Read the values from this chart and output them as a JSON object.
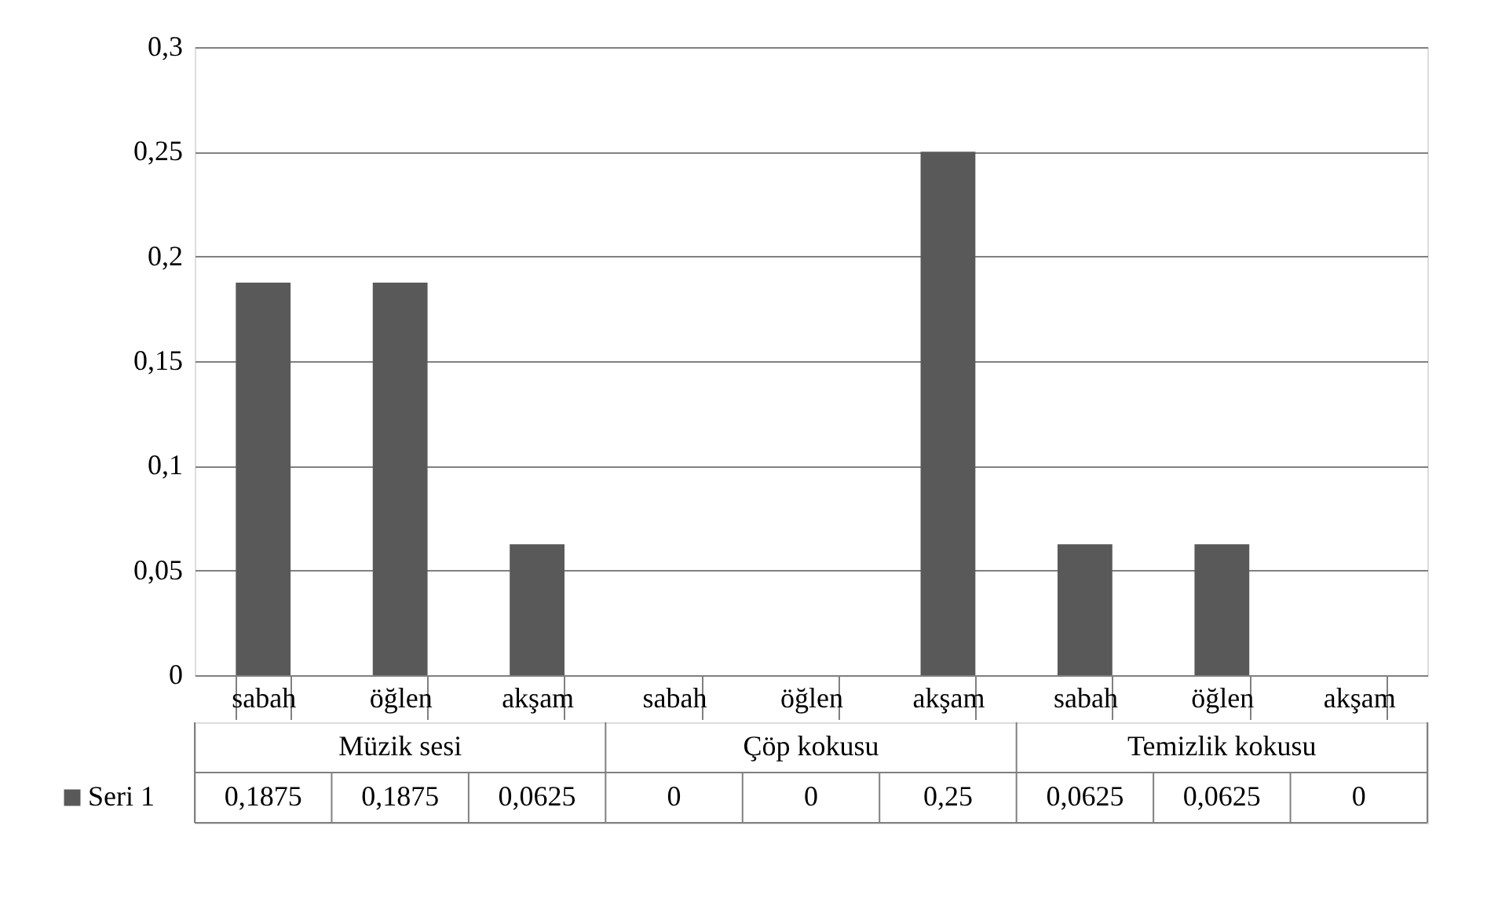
{
  "chart_data": {
    "type": "bar",
    "categories": [
      "sabah",
      "öğlen",
      "akşam",
      "sabah",
      "öğlen",
      "akşam",
      "sabah",
      "öğlen",
      "akşam"
    ],
    "series": [
      {
        "name": "Seri 1",
        "color": "#595959",
        "values": [
          0.1875,
          0.1875,
          0.0625,
          0,
          0,
          0.25,
          0.0625,
          0.0625,
          0
        ],
        "value_labels": [
          "0,1875",
          "0,1875",
          "0,0625",
          "0",
          "0",
          "0,25",
          "0,0625",
          "0,0625",
          "0"
        ]
      }
    ],
    "annotations": [
      "Müzik sesi",
      "Çöp kokusu",
      "Temizlik kokusu"
    ],
    "ylim": [
      0,
      0.3
    ],
    "yticks": [
      {
        "value": 0,
        "label": "0"
      },
      {
        "value": 0.05,
        "label": "0,05"
      },
      {
        "value": 0.1,
        "label": "0,1"
      },
      {
        "value": 0.15,
        "label": "0,15"
      },
      {
        "value": 0.2,
        "label": "0,2"
      },
      {
        "value": 0.25,
        "label": "0,25"
      },
      {
        "value": 0.3,
        "label": "0,3"
      }
    ],
    "grid": "y",
    "legend": "bottom"
  }
}
